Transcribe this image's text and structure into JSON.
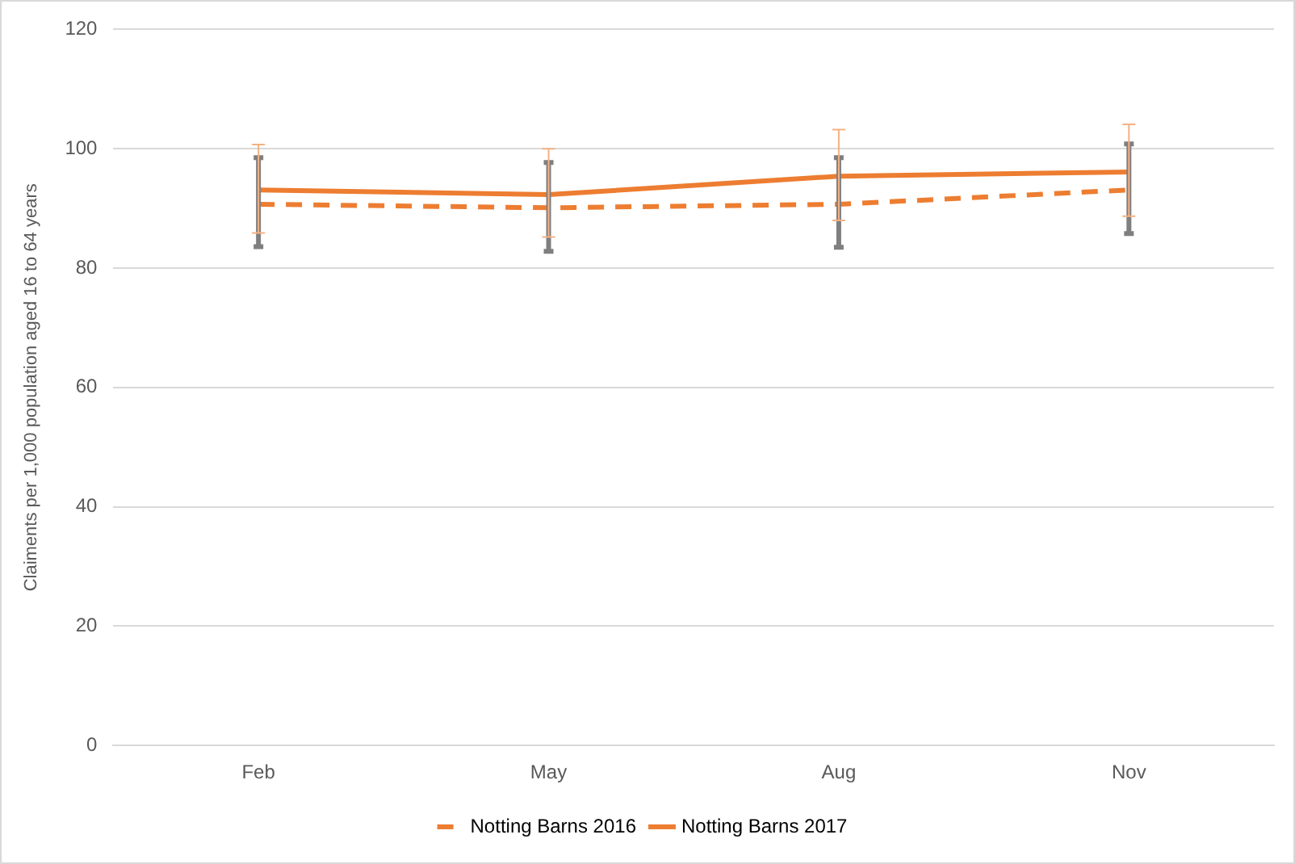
{
  "chart_data": {
    "type": "line",
    "ylabel": "Claiments per 1,000 population aged 16 to 64 years",
    "categories": [
      "Feb",
      "May",
      "Aug",
      "Nov"
    ],
    "series": [
      {
        "name": "Notting Barns 2016",
        "color": "#ed7d31",
        "line_style": "dashed",
        "values": [
          90.7,
          90.1,
          90.7,
          93.1
        ],
        "errors": [
          [
            83.6,
            98.5
          ],
          [
            82.8,
            97.7
          ],
          [
            83.5,
            98.5
          ],
          [
            85.8,
            100.8
          ]
        ]
      },
      {
        "name": "Notting Barns 2017",
        "color": "#ed7d31",
        "line_style": "solid",
        "values": [
          93.1,
          92.3,
          95.4,
          96.1
        ],
        "errors": [
          [
            85.9,
            100.7
          ],
          [
            85.2,
            100.0
          ],
          [
            88.0,
            103.2
          ],
          [
            88.7,
            104.1
          ]
        ]
      }
    ],
    "ylim": [
      0,
      120
    ],
    "yticks": [
      0,
      20,
      40,
      60,
      80,
      100,
      120
    ],
    "grid": "y",
    "legend": "bottom",
    "marker": "none"
  }
}
